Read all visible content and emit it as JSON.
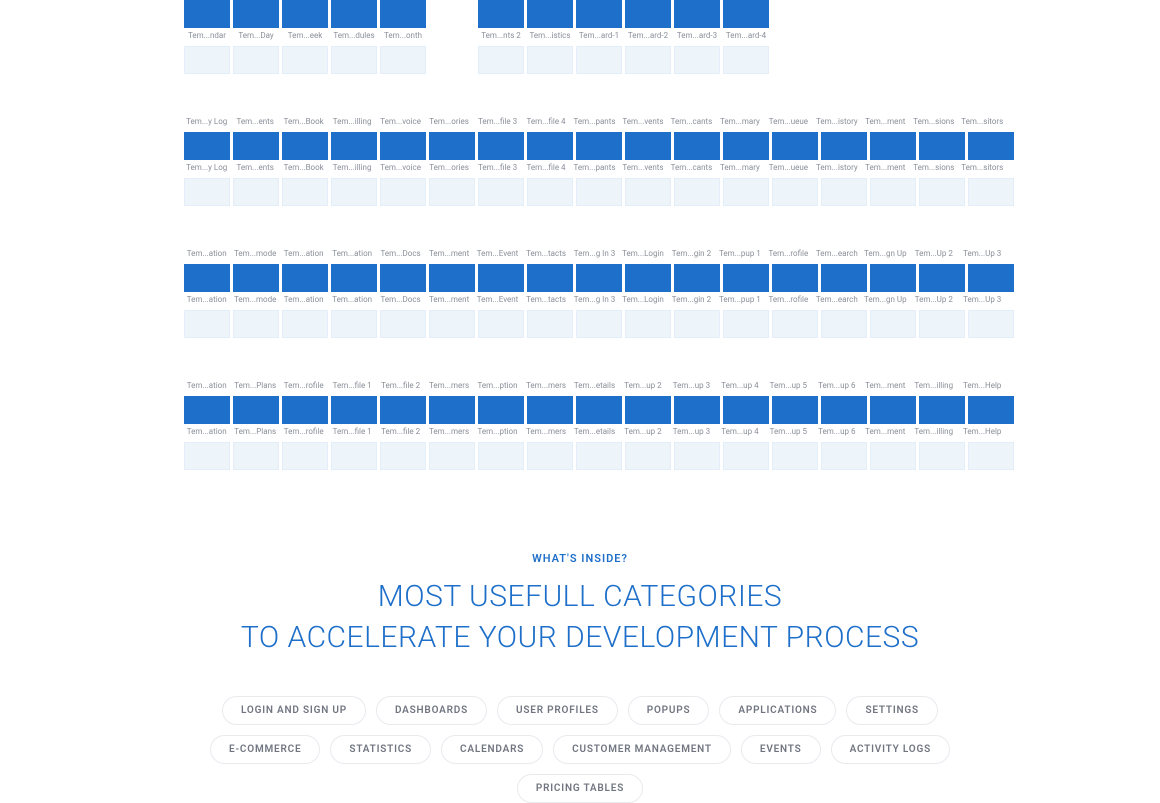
{
  "gallery": {
    "sections": [
      {
        "darkLabels": [
          "Tem...ndar",
          "Tem...Day",
          "Tem...eek",
          "Tem...dules",
          "Tem...onth"
        ],
        "darkOffset": 0,
        "lightLabels": [
          "",
          "",
          "",
          "",
          ""
        ],
        "lightOffset": 0,
        "extra": {
          "darkLabels": [
            "Tem...nts 2",
            "Tem...istics",
            "Tem...ard-1",
            "Tem...ard-2",
            "Tem...ard-3",
            "Tem...ard-4"
          ],
          "darkOffset": 6,
          "lightLabels": [
            "",
            "",
            "",
            "",
            "",
            ""
          ],
          "lightOffset": 6
        }
      },
      {
        "darkLabels": [
          "Tem...y Log",
          "Tem...ents",
          "Tem...Book",
          "Tem...illing",
          "Tem...voice",
          "Tem...ories",
          "Tem...file 3",
          "Tem...file 4",
          "Tem...pants",
          "Tem...vents",
          "Tem...cants",
          "Tem...mary",
          "Tem...ueue",
          "Tem...istory",
          "Tem...ment",
          "Tem...sions",
          "Tem...sitors"
        ],
        "darkOffset": 0,
        "lightLabels": [
          "Tem...y Log",
          "Tem...ents",
          "Tem...Book",
          "Tem...illing",
          "Tem...voice",
          "Tem...ories",
          "Tem...file 3",
          "Tem...file 4",
          "Tem...pants",
          "Tem...vents",
          "Tem...cants",
          "Tem...mary",
          "Tem...ueue",
          "Tem...istory",
          "Tem...ment",
          "Tem...sions",
          "Tem...sitors"
        ],
        "lightOffset": 0
      },
      {
        "darkLabels": [
          "Tem...ation",
          "Tem...mode",
          "Tem...ation",
          "Tem...ation",
          "Tem...Docs",
          "Tem...ment",
          "Tem...Event",
          "Tem...tacts",
          "Tem...g In 3",
          "Tem...Login",
          "Tem...gin 2",
          "Tem...pup 1",
          "Tem...rofile",
          "Tem...earch",
          "Tem...gn Up",
          "Tem...Up 2",
          "Tem...Up 3"
        ],
        "darkOffset": 0,
        "lightLabels": [
          "Tem...ation",
          "Tem...mode",
          "Tem...ation",
          "Tem...ation",
          "Tem...Docs",
          "Tem...ment",
          "Tem...Event",
          "Tem...tacts",
          "Tem...g In 3",
          "Tem...Login",
          "Tem...gin 2",
          "Tem...pup 1",
          "Tem...rofile",
          "Tem...earch",
          "Tem...gn Up",
          "Tem...Up 2",
          "Tem...Up 3"
        ],
        "lightOffset": 0
      },
      {
        "darkLabels": [
          "Tem...ation",
          "Tem...Plans",
          "Tem...rofile",
          "Tem...file 1",
          "Tem...file 2",
          "Tem...mers",
          "Tem...ption",
          "Tem...mers",
          "Tem...etails",
          "Tem...up 2",
          "Tem...up 3",
          "Tem...up 4",
          "Tem...up 5",
          "Tem...up 6",
          "Tem...ment",
          "Tem...illing",
          "Tem...Help"
        ],
        "darkOffset": 0,
        "lightLabels": [
          "Tem...ation",
          "Tem...Plans",
          "Tem...rofile",
          "Tem...file 1",
          "Tem...file 2",
          "Tem...mers",
          "Tem...ption",
          "Tem...mers",
          "Tem...etails",
          "Tem...up 2",
          "Tem...up 3",
          "Tem...up 4",
          "Tem...up 5",
          "Tem...up 6",
          "Tem...ment",
          "Tem...illing",
          "Tem...Help"
        ],
        "lightOffset": 0
      }
    ]
  },
  "hero": {
    "eyebrow": "WHAT'S INSIDE?",
    "line1": "MOST USEFULL CATEGORIES",
    "line2": "TO ACCELERATE YOUR DEVELOPMENT PROCESS"
  },
  "pills": [
    "LOGIN AND SIGN UP",
    "DASHBOARDS",
    "USER PROFILES",
    "POPUPS",
    "APPLICATIONS",
    "SETTINGS",
    "E-COMMERCE",
    "STATISTICS",
    "CALENDARS",
    "CUSTOMER MANAGEMENT",
    "EVENTS",
    "ACTIVITY LOGS",
    "PRICING TABLES"
  ],
  "colors": {
    "darkThumb": "#1e6fc9",
    "lightThumb": "#edf5fb",
    "labelText": "#8a8f99",
    "accent": "#1e6fc9",
    "pillBorder": "#e8eaee",
    "pillText": "#707580"
  }
}
